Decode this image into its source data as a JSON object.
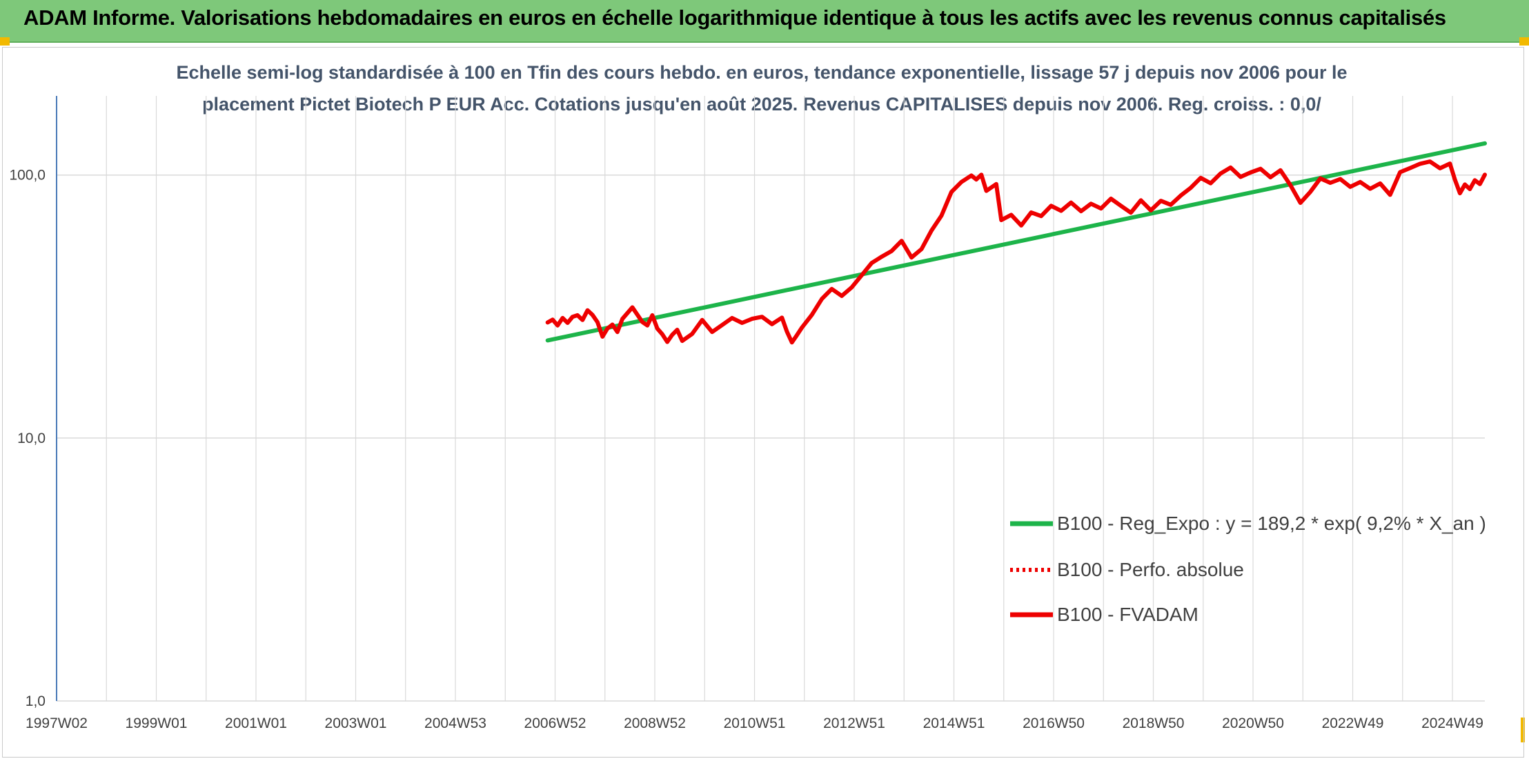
{
  "header": {
    "title": "ADAM Informe. Valorisations hebdomadaires en euros en échelle logarithmique identique à tous les actifs avec les revenus connus capitalisés"
  },
  "colors": {
    "banner": "#7ec87a",
    "accent_corner": "#f2b900",
    "regression": "#1db44a",
    "fvadam": "#ee0000",
    "perf_absolue": "#ee0000",
    "subtitle": "#44546a",
    "grid": "#d9d9d9"
  },
  "chart_data": {
    "type": "line",
    "subtitle_lines": [
      "Echelle semi-log standardisée à 100 en Tfin des cours hebdo. en euros, tendance exponentielle, lissage 57 j depuis nov 2006 pour le",
      "placement Pictet Biotech P EUR Acc. Cotations jusqu'en août 2025. Revenus CAPITALISES depuis nov 2006. Reg. croiss. : 0,0/"
    ],
    "y_scale": "log",
    "ylim": [
      1,
      200
    ],
    "y_ticks": [
      {
        "value": 1,
        "label": "1,0"
      },
      {
        "value": 10,
        "label": "10,0"
      },
      {
        "value": 100,
        "label": "100,0"
      }
    ],
    "xlim": [
      1997.05,
      2025.7
    ],
    "x_ticks": [
      {
        "value": 1997.05,
        "label": "1997W02"
      },
      {
        "value": 1999.05,
        "label": "1999W01"
      },
      {
        "value": 2001.05,
        "label": "2001W01"
      },
      {
        "value": 2003.05,
        "label": "2003W01"
      },
      {
        "value": 2005.05,
        "label": "2004W53"
      },
      {
        "value": 2007.05,
        "label": "2006W52"
      },
      {
        "value": 2009.05,
        "label": "2008W52"
      },
      {
        "value": 2011.05,
        "label": "2010W51"
      },
      {
        "value": 2013.05,
        "label": "2012W51"
      },
      {
        "value": 2015.05,
        "label": "2014W51"
      },
      {
        "value": 2017.05,
        "label": "2016W50"
      },
      {
        "value": 2019.05,
        "label": "2018W50"
      },
      {
        "value": 2021.05,
        "label": "2020W50"
      },
      {
        "value": 2023.05,
        "label": "2022W49"
      },
      {
        "value": 2025.05,
        "label": "2024W49"
      }
    ],
    "grid": true,
    "legend_position": "bottom-right",
    "series": [
      {
        "name": "B100 - Reg_Expo : y = 189,2 * exp( 9,2% *  X_an )",
        "style": "solid-thick",
        "color": "#1db44a",
        "x": [
          2006.9,
          2025.7
        ],
        "y": [
          23.5,
          132
        ]
      },
      {
        "name": "B100 - Perfo. absolue",
        "style": "dotted",
        "color": "#ee0000",
        "x": [],
        "y": []
      },
      {
        "name": "B100 - FVADAM",
        "style": "solid-thick",
        "color": "#ee0000",
        "x": [
          2006.9,
          2007.0,
          2007.1,
          2007.2,
          2007.3,
          2007.4,
          2007.5,
          2007.6,
          2007.7,
          2007.8,
          2007.9,
          2008.0,
          2008.1,
          2008.2,
          2008.3,
          2008.4,
          2008.6,
          2008.8,
          2008.9,
          2009.0,
          2009.1,
          2009.2,
          2009.3,
          2009.4,
          2009.5,
          2009.6,
          2009.8,
          2010.0,
          2010.2,
          2010.4,
          2010.6,
          2010.8,
          2011.0,
          2011.2,
          2011.4,
          2011.6,
          2011.7,
          2011.8,
          2011.9,
          2012.0,
          2012.2,
          2012.4,
          2012.6,
          2012.8,
          2013.0,
          2013.2,
          2013.4,
          2013.6,
          2013.8,
          2014.0,
          2014.2,
          2014.4,
          2014.6,
          2014.8,
          2015.0,
          2015.2,
          2015.4,
          2015.5,
          2015.6,
          2015.7,
          2015.9,
          2016.0,
          2016.2,
          2016.4,
          2016.6,
          2016.8,
          2017.0,
          2017.2,
          2017.4,
          2017.6,
          2017.8,
          2018.0,
          2018.2,
          2018.4,
          2018.6,
          2018.8,
          2019.0,
          2019.2,
          2019.4,
          2019.6,
          2019.8,
          2020.0,
          2020.2,
          2020.4,
          2020.6,
          2020.8,
          2021.0,
          2021.2,
          2021.4,
          2021.6,
          2021.8,
          2022.0,
          2022.2,
          2022.4,
          2022.6,
          2022.8,
          2023.0,
          2023.2,
          2023.4,
          2023.6,
          2023.8,
          2024.0,
          2024.2,
          2024.4,
          2024.6,
          2024.8,
          2025.0,
          2025.1,
          2025.2,
          2025.3,
          2025.4,
          2025.5,
          2025.6,
          2025.7
        ],
        "y": [
          27.5,
          28.2,
          26.8,
          28.6,
          27.4,
          28.9,
          29.3,
          28.1,
          30.6,
          29.4,
          27.6,
          24.3,
          26.1,
          27.0,
          25.3,
          28.4,
          31.4,
          27.6,
          26.8,
          29.3,
          26.1,
          24.8,
          23.2,
          24.7,
          25.8,
          23.4,
          24.9,
          28.1,
          25.3,
          26.9,
          28.6,
          27.4,
          28.4,
          28.9,
          27.1,
          28.7,
          25.4,
          23.1,
          24.6,
          26.3,
          29.4,
          33.8,
          36.9,
          34.7,
          37.4,
          41.6,
          46.3,
          48.9,
          51.4,
          56.2,
          48.6,
          52.3,
          61.5,
          70.1,
          86.2,
          94.1,
          99.6,
          96.2,
          100.3,
          87.1,
          92.4,
          67.4,
          70.6,
          64.3,
          72.1,
          69.8,
          76.4,
          73.1,
          78.6,
          72.9,
          77.8,
          74.6,
          81.3,
          76.4,
          71.9,
          80.2,
          73.4,
          79.8,
          77.1,
          83.6,
          89.4,
          97.6,
          93.1,
          101.4,
          106.8,
          98.4,
          102.3,
          105.6,
          98.1,
          104.3,
          91.6,
          78.4,
          86.3,
          97.1,
          93.4,
          96.6,
          90.2,
          94.1,
          88.7,
          92.9,
          84.1,
          102.6,
          106.3,
          110.4,
          112.6,
          106.1,
          110.6,
          96.1,
          85.3,
          92.1,
          88.4,
          95.6,
          92.4,
          100.3
        ]
      }
    ]
  }
}
